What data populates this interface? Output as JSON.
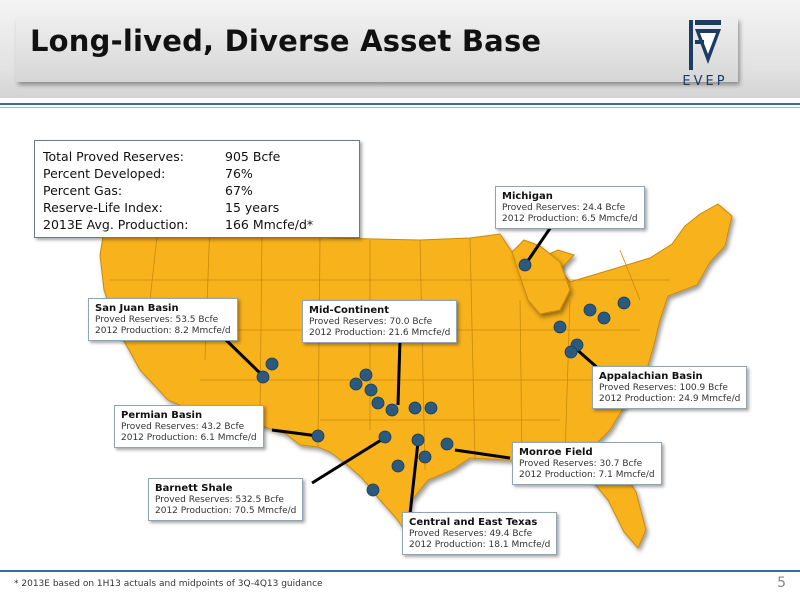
{
  "title": "Long-lived, Diverse Asset Base",
  "logo": {
    "text": "EVEP",
    "icon": "evep-logo-icon"
  },
  "summary": {
    "rows": [
      {
        "label": "Total Proved Reserves:",
        "value": "905 Bcfe"
      },
      {
        "label": "Percent Developed:",
        "value": "76%"
      },
      {
        "label": "Percent Gas:",
        "value": "67%"
      },
      {
        "label": "Reserve-Life Index:",
        "value": "15 years"
      },
      {
        "label": "2013E Avg. Production:",
        "value": "166  Mmcfe/d*"
      }
    ]
  },
  "assets": [
    {
      "name": "Michigan",
      "reserves": "Proved Reserves: 24.4 Bcfe",
      "production": "2012 Production: 6.5 Mmcfe/d"
    },
    {
      "name": "San Juan Basin",
      "reserves": "Proved Reserves: 53.5 Bcfe",
      "production": "2012 Production: 8.2 Mmcfe/d"
    },
    {
      "name": "Mid-Continent",
      "reserves": "Proved Reserves: 70.0 Bcfe",
      "production": "2012 Production: 21.6 Mmcfe/d"
    },
    {
      "name": "Appalachian Basin",
      "reserves": "Proved Reserves: 100.9 Bcfe",
      "production": "2012 Production: 24.9 Mmcfe/d"
    },
    {
      "name": "Permian Basin",
      "reserves": "Proved Reserves: 43.2 Bcfe",
      "production": "2012 Production: 6.1 Mmcfe/d"
    },
    {
      "name": "Monroe Field",
      "reserves": "Proved Reserves: 30.7 Bcfe",
      "production": "2012 Production: 7.1 Mmcfe/d"
    },
    {
      "name": "Barnett Shale",
      "reserves": "Proved Reserves: 532.5 Bcfe",
      "production": "2012 Production: 70.5 Mmcfe/d"
    },
    {
      "name": "Central and East Texas",
      "reserves": "Proved Reserves: 49.4 Bcfe",
      "production": "2012 Production: 18.1 Mmcfe/d"
    }
  ],
  "map": {
    "fill_color": "#f7b21c",
    "border_color": "#c98a0c",
    "marker_color": "#2b5a80"
  },
  "footnote": "* 2013E based on 1H13 actuals and midpoints of 3Q-4Q13 guidance",
  "page_number": "5"
}
